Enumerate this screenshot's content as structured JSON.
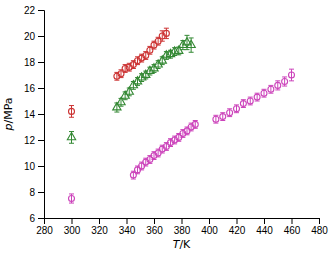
{
  "chart_data": {
    "type": "scatter",
    "x_label": "T/K",
    "y_label": "p/MPa",
    "xlim": [
      280,
      480
    ],
    "ylim": [
      6,
      22
    ],
    "xticks": [
      280,
      300,
      320,
      340,
      360,
      380,
      400,
      420,
      440,
      460,
      480
    ],
    "yticks": [
      6,
      8,
      10,
      12,
      14,
      16,
      18,
      20,
      22
    ],
    "series": [
      {
        "color": "#cc3333",
        "marker": "circle",
        "x": [
          300,
          333,
          336,
          339,
          342,
          345,
          348,
          351,
          354,
          357,
          360,
          363,
          366,
          369
        ],
        "values": [
          14.2,
          16.9,
          17.1,
          17.5,
          17.6,
          17.8,
          18.1,
          18.3,
          18.5,
          18.9,
          19.3,
          19.6,
          20.0,
          20.2
        ],
        "errors": [
          0.45,
          0.3,
          0.3,
          0.3,
          0.3,
          0.3,
          0.3,
          0.3,
          0.3,
          0.3,
          0.3,
          0.3,
          0.4,
          0.4
        ]
      },
      {
        "color": "#338833",
        "marker": "triangle",
        "x": [
          300,
          333,
          336,
          339,
          342,
          345,
          348,
          351,
          354,
          357,
          360,
          363,
          366,
          369,
          372,
          375,
          378,
          381,
          384,
          387
        ],
        "values": [
          12.2,
          14.5,
          14.9,
          15.4,
          15.7,
          16.2,
          16.5,
          16.8,
          17.0,
          17.3,
          17.5,
          17.8,
          18.1,
          18.5,
          18.6,
          18.8,
          18.85,
          19.3,
          19.5,
          19.3
        ],
        "errors": [
          0.45,
          0.35,
          0.3,
          0.3,
          0.3,
          0.3,
          0.3,
          0.3,
          0.3,
          0.3,
          0.3,
          0.3,
          0.3,
          0.3,
          0.3,
          0.3,
          0.3,
          0.35,
          0.55,
          0.55
        ]
      },
      {
        "color": "#cc44bb",
        "marker": "circle",
        "x": [
          300,
          345,
          348,
          351,
          354,
          357,
          360,
          363,
          366,
          369,
          372,
          375,
          378,
          381,
          384,
          387,
          390,
          405,
          410,
          415,
          420,
          425,
          430,
          435,
          440,
          445,
          450,
          455,
          460
        ],
        "values": [
          7.5,
          9.3,
          9.7,
          10.0,
          10.3,
          10.5,
          10.8,
          11.0,
          11.3,
          11.5,
          11.8,
          12.0,
          12.2,
          12.5,
          12.7,
          13.0,
          13.2,
          13.6,
          13.8,
          14.1,
          14.4,
          14.8,
          15.0,
          15.3,
          15.6,
          15.9,
          16.2,
          16.5,
          17.0
        ],
        "errors": [
          0.35,
          0.3,
          0.3,
          0.3,
          0.3,
          0.3,
          0.3,
          0.3,
          0.3,
          0.3,
          0.3,
          0.3,
          0.3,
          0.3,
          0.3,
          0.3,
          0.3,
          0.3,
          0.3,
          0.3,
          0.3,
          0.3,
          0.3,
          0.3,
          0.3,
          0.3,
          0.35,
          0.35,
          0.45
        ]
      }
    ]
  }
}
